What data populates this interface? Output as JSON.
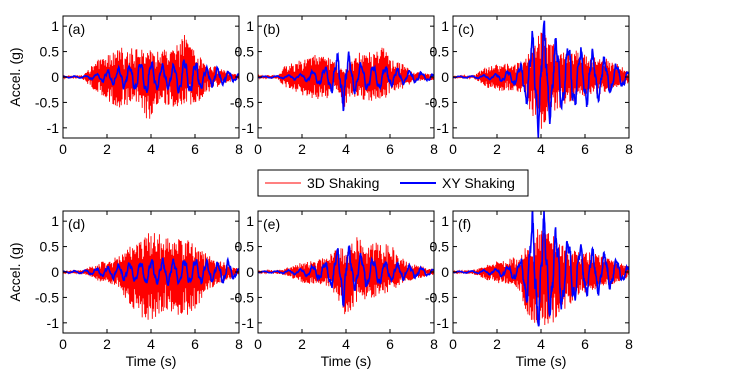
{
  "chart_data": {
    "type": "line",
    "layout": {
      "rows": 2,
      "cols": 3
    },
    "xlim": [
      0,
      8
    ],
    "ylim": [
      -1.2,
      1.2
    ],
    "xticks": [
      0,
      2,
      4,
      6,
      8
    ],
    "yticks": [
      1,
      0.5,
      0,
      -0.5,
      -1
    ],
    "xtick_labels": [
      "0",
      "2",
      "4",
      "6",
      "8"
    ],
    "ytick_labels": [
      "1",
      "0.5",
      "0",
      "-0.5",
      "-1"
    ],
    "xlabel": "Time (s)",
    "ylabel": "Accel. (g)",
    "grid": false,
    "legend": {
      "placement": "center-between-rows",
      "entries": [
        {
          "label": "3D Shaking",
          "color": "#ff0000"
        },
        {
          "label": "XY Shaking",
          "color": "#0000ff"
        }
      ]
    },
    "colors": {
      "3d": "#ff0000",
      "xy": "#0000ff"
    },
    "panels": [
      {
        "label": "(a)",
        "red": {
          "x": [
            0,
            0.9,
            1.5,
            2.5,
            3.0,
            3.5,
            3.9,
            4.3,
            5.0,
            5.6,
            6.0,
            6.5,
            7.0,
            7.5,
            8.0
          ],
          "max": [
            0.02,
            0.03,
            0.3,
            0.55,
            0.6,
            0.55,
            0.5,
            0.55,
            0.55,
            0.9,
            0.5,
            0.25,
            0.2,
            0.1,
            0.05
          ],
          "min": [
            -0.02,
            -0.03,
            -0.3,
            -0.6,
            -0.55,
            -0.5,
            -0.95,
            -0.7,
            -0.6,
            -0.55,
            -0.6,
            -0.3,
            -0.2,
            -0.1,
            -0.05
          ]
        },
        "blue": {
          "x": [
            0,
            1.0,
            1.5,
            2.0,
            2.5,
            3.0,
            3.5,
            3.9,
            4.3,
            5.0,
            5.5,
            6.0,
            6.5,
            7.0,
            7.5,
            8.0
          ],
          "amp": [
            0.01,
            0.02,
            0.05,
            0.1,
            0.15,
            0.2,
            0.25,
            0.3,
            0.2,
            0.2,
            0.3,
            0.25,
            0.15,
            0.15,
            0.1,
            0.05
          ],
          "period": 0.5
        }
      },
      {
        "label": "(b)",
        "red": {
          "x": [
            0,
            0.9,
            1.2,
            2.0,
            2.8,
            3.2,
            3.5,
            3.9,
            4.4,
            5.0,
            5.7,
            6.0,
            6.5,
            7.0,
            8.0
          ],
          "max": [
            0.02,
            0.03,
            0.2,
            0.35,
            0.45,
            0.4,
            0.3,
            0.1,
            0.45,
            0.5,
            0.6,
            0.35,
            0.3,
            0.1,
            0.05
          ],
          "min": [
            -0.02,
            -0.03,
            -0.2,
            -0.35,
            -0.45,
            -0.4,
            -0.2,
            -0.6,
            -0.4,
            -0.5,
            -0.45,
            -0.35,
            -0.25,
            -0.1,
            -0.05
          ]
        },
        "blue": {
          "x": [
            0,
            1.0,
            2.0,
            3.0,
            3.5,
            3.9,
            4.3,
            5.0,
            5.5,
            6.0,
            7.0,
            8.0
          ],
          "amp": [
            0.01,
            0.02,
            0.05,
            0.15,
            0.3,
            0.5,
            0.25,
            0.2,
            0.2,
            0.15,
            0.1,
            0.05
          ],
          "period": 0.55
        }
      },
      {
        "label": "(c)",
        "red": {
          "x": [
            0,
            0.9,
            1.5,
            2.5,
            3.2,
            3.6,
            4.0,
            4.4,
            5.0,
            5.5,
            6.0,
            6.5,
            7.0,
            7.5,
            8.0
          ],
          "max": [
            0.02,
            0.03,
            0.2,
            0.3,
            0.3,
            0.6,
            1.0,
            0.7,
            0.55,
            0.55,
            0.45,
            0.4,
            0.35,
            0.25,
            0.1
          ],
          "min": [
            -0.02,
            -0.03,
            -0.2,
            -0.3,
            -0.3,
            -0.8,
            -1.05,
            -0.75,
            -0.55,
            -0.5,
            -0.4,
            -0.35,
            -0.3,
            -0.2,
            -0.1
          ]
        },
        "blue": {
          "x": [
            0,
            1.0,
            2.0,
            3.0,
            3.3,
            3.7,
            4.0,
            4.4,
            5.0,
            5.5,
            6.0,
            6.5,
            7.0,
            7.5,
            8.0
          ],
          "amp": [
            0.01,
            0.02,
            0.05,
            0.15,
            0.4,
            0.8,
            0.9,
            0.7,
            0.55,
            0.5,
            0.45,
            0.4,
            0.3,
            0.2,
            0.1
          ],
          "period": 0.55
        }
      },
      {
        "label": "(d)",
        "red": {
          "x": [
            0,
            0.9,
            1.5,
            2.5,
            3.0,
            3.5,
            4.0,
            4.5,
            5.0,
            5.5,
            6.0,
            6.5,
            7.0,
            7.5,
            8.0
          ],
          "max": [
            0.02,
            0.03,
            0.15,
            0.3,
            0.5,
            0.6,
            0.85,
            0.7,
            0.65,
            0.7,
            0.55,
            0.35,
            0.25,
            0.15,
            0.05
          ],
          "min": [
            -0.02,
            -0.03,
            -0.15,
            -0.3,
            -0.6,
            -0.9,
            -1.0,
            -0.85,
            -0.8,
            -0.9,
            -0.75,
            -0.4,
            -0.25,
            -0.15,
            -0.05
          ]
        },
        "blue": {
          "x": [
            0,
            1.0,
            2.0,
            3.0,
            4.0,
            5.0,
            6.0,
            7.0,
            7.5,
            8.0
          ],
          "amp": [
            0.01,
            0.03,
            0.08,
            0.15,
            0.2,
            0.2,
            0.2,
            0.15,
            0.2,
            0.05
          ],
          "period": 0.5
        }
      },
      {
        "label": "(e)",
        "red": {
          "x": [
            0,
            0.9,
            1.5,
            2.0,
            2.8,
            3.2,
            3.6,
            4.0,
            4.4,
            5.0,
            5.5,
            6.0,
            6.5,
            7.0,
            8.0
          ],
          "max": [
            0.02,
            0.03,
            0.1,
            0.2,
            0.25,
            0.3,
            0.6,
            0.4,
            0.7,
            0.6,
            0.6,
            0.55,
            0.3,
            0.15,
            0.05
          ],
          "min": [
            -0.02,
            -0.03,
            -0.1,
            -0.2,
            -0.25,
            -0.3,
            -0.5,
            -1.1,
            -0.6,
            -0.55,
            -0.45,
            -0.4,
            -0.25,
            -0.15,
            -0.05
          ]
        },
        "blue": {
          "x": [
            0,
            1.0,
            2.0,
            3.0,
            3.5,
            3.9,
            4.3,
            5.0,
            6.0,
            7.0,
            8.0
          ],
          "amp": [
            0.01,
            0.02,
            0.05,
            0.15,
            0.3,
            0.55,
            0.3,
            0.25,
            0.15,
            0.1,
            0.05
          ],
          "period": 0.55
        }
      },
      {
        "label": "(f)",
        "red": {
          "x": [
            0,
            0.9,
            1.5,
            2.5,
            3.0,
            3.5,
            3.9,
            4.3,
            5.0,
            5.5,
            6.0,
            6.5,
            7.0,
            7.5,
            8.0
          ],
          "max": [
            0.02,
            0.03,
            0.15,
            0.25,
            0.35,
            0.6,
            1.0,
            0.8,
            0.55,
            0.45,
            0.4,
            0.35,
            0.3,
            0.2,
            0.1
          ],
          "min": [
            -0.02,
            -0.03,
            -0.15,
            -0.25,
            -0.35,
            -1.0,
            -1.0,
            -1.1,
            -0.8,
            -0.55,
            -0.45,
            -0.4,
            -0.3,
            -0.2,
            -0.1
          ]
        },
        "blue": {
          "x": [
            0,
            1.0,
            2.0,
            3.0,
            3.3,
            3.6,
            4.0,
            4.4,
            5.0,
            5.5,
            6.0,
            6.5,
            7.0,
            7.5,
            8.0
          ],
          "amp": [
            0.01,
            0.02,
            0.05,
            0.15,
            0.4,
            0.95,
            0.95,
            0.75,
            0.6,
            0.5,
            0.4,
            0.35,
            0.3,
            0.2,
            0.1
          ],
          "period": 0.55
        }
      }
    ]
  }
}
